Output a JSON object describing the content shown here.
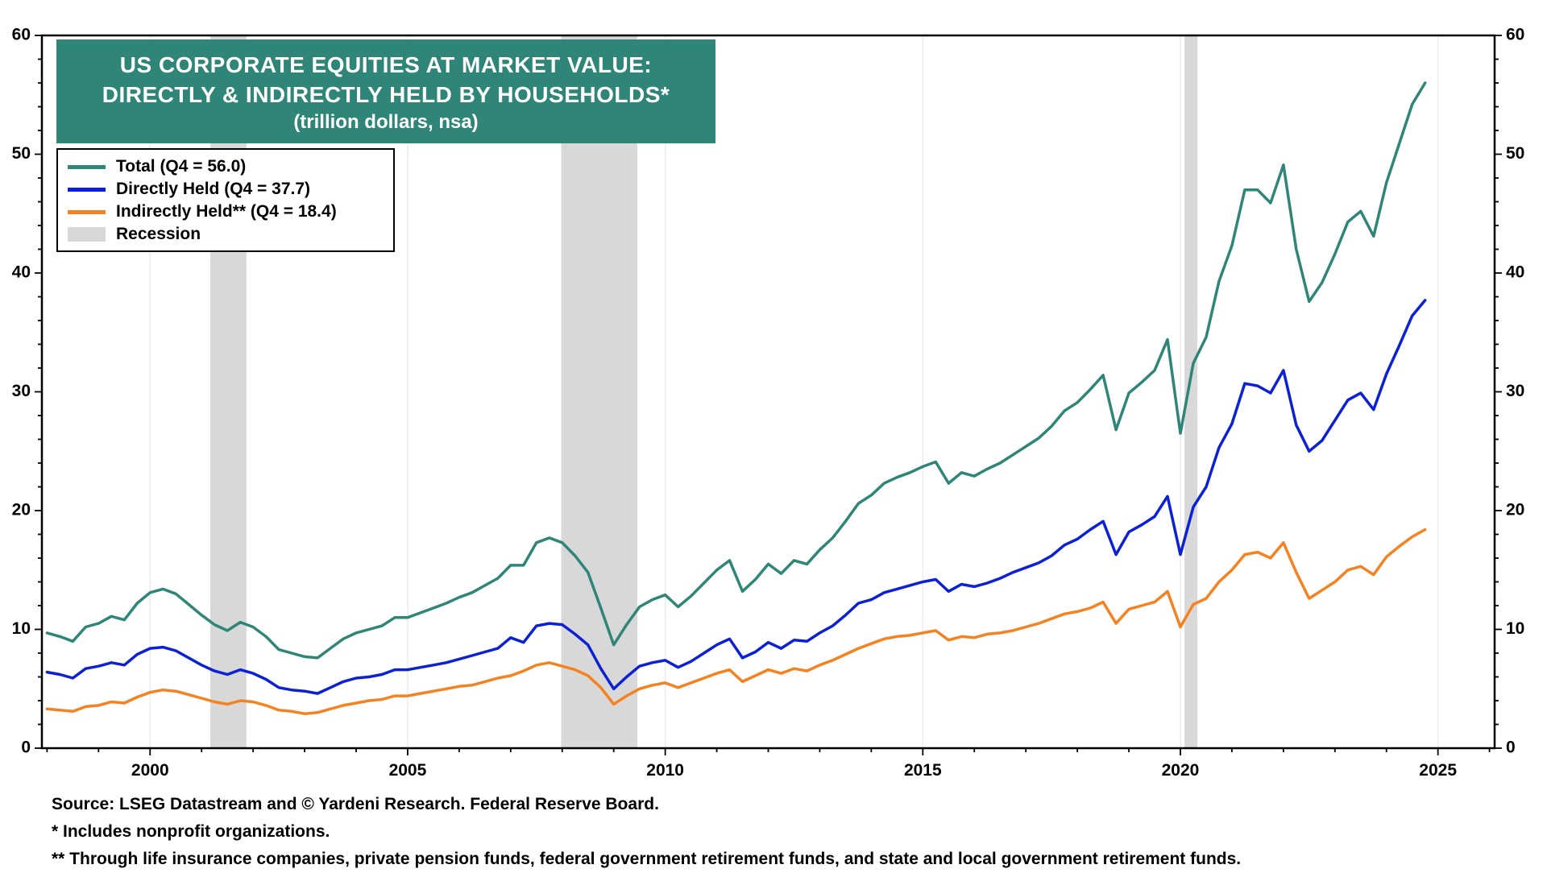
{
  "title": {
    "line1": "US CORPORATE EQUITIES AT MARKET VALUE:",
    "line2": "DIRECTLY & INDIRECTLY HELD BY HOUSEHOLDS*",
    "line3": "(trillion dollars, nsa)",
    "background": "#2f8678",
    "text_color": "#ffffff"
  },
  "legend": {
    "items": [
      {
        "label": "Total (Q4 = 56.0)",
        "type": "line",
        "color": "#2f8678"
      },
      {
        "label": "Directly Held (Q4 = 37.7)",
        "type": "line",
        "color": "#0c20d5"
      },
      {
        "label": "Indirectly Held** (Q4 = 18.4)",
        "type": "line",
        "color": "#f58220"
      },
      {
        "label": "Recession",
        "type": "patch",
        "color": "#d8d8d8"
      }
    ]
  },
  "footer": {
    "lines": [
      "Source: LSEG Datastream and © Yardeni Research. Federal Reserve Board.",
      "* Includes nonprofit organizations.",
      "** Through life insurance companies, private pension funds, federal government retirement funds, and state and local government retirement funds."
    ]
  },
  "chart_data": {
    "type": "line",
    "title": "US CORPORATE EQUITIES AT MARKET VALUE: DIRECTLY & INDIRECTLY HELD BY HOUSEHOLDS*",
    "subtitle": "(trillion dollars, nsa)",
    "xlabel": "",
    "ylabel": "trillion dollars",
    "ylim": [
      0,
      60
    ],
    "legend_position": "top-left",
    "grid": {
      "vertical_at_major_x": true,
      "color": "#ececec"
    },
    "recession_color": "#d8d8d8",
    "recessions": [
      [
        2001.17,
        2001.87
      ],
      [
        2007.98,
        2009.46
      ],
      [
        2020.08,
        2020.33
      ]
    ],
    "x_axis": {
      "min": 1997.9,
      "max": 2026.1,
      "major_ticks": [
        2000,
        2005,
        2010,
        2015,
        2020,
        2025
      ],
      "minor_tick_step": 1
    },
    "y_axis": {
      "min": 0,
      "max": 60,
      "major_ticks": [
        0,
        10,
        20,
        30,
        40,
        50,
        60
      ],
      "minor_tick_step": 2,
      "label_both_sides": true
    },
    "x": [
      1998.0,
      1998.25,
      1998.5,
      1998.75,
      1999.0,
      1999.25,
      1999.5,
      1999.75,
      2000.0,
      2000.25,
      2000.5,
      2000.75,
      2001.0,
      2001.25,
      2001.5,
      2001.75,
      2002.0,
      2002.25,
      2002.5,
      2002.75,
      2003.0,
      2003.25,
      2003.5,
      2003.75,
      2004.0,
      2004.25,
      2004.5,
      2004.75,
      2005.0,
      2005.25,
      2005.5,
      2005.75,
      2006.0,
      2006.25,
      2006.5,
      2006.75,
      2007.0,
      2007.25,
      2007.5,
      2007.75,
      2008.0,
      2008.25,
      2008.5,
      2008.75,
      2009.0,
      2009.25,
      2009.5,
      2009.75,
      2010.0,
      2010.25,
      2010.5,
      2010.75,
      2011.0,
      2011.25,
      2011.5,
      2011.75,
      2012.0,
      2012.25,
      2012.5,
      2012.75,
      2013.0,
      2013.25,
      2013.5,
      2013.75,
      2014.0,
      2014.25,
      2014.5,
      2014.75,
      2015.0,
      2015.25,
      2015.5,
      2015.75,
      2016.0,
      2016.25,
      2016.5,
      2016.75,
      2017.0,
      2017.25,
      2017.5,
      2017.75,
      2018.0,
      2018.25,
      2018.5,
      2018.75,
      2019.0,
      2019.25,
      2019.5,
      2019.75,
      2020.0,
      2020.25,
      2020.5,
      2020.75,
      2021.0,
      2021.25,
      2021.5,
      2021.75,
      2022.0,
      2022.25,
      2022.5,
      2022.75,
      2023.0,
      2023.25,
      2023.5,
      2023.75,
      2024.0,
      2024.25,
      2024.5,
      2024.75
    ],
    "series": [
      {
        "name": "Total",
        "q4_value": 56.0,
        "color": "#2f8678",
        "values": [
          9.7,
          9.4,
          9.0,
          10.2,
          10.5,
          11.1,
          10.8,
          12.2,
          13.1,
          13.4,
          13.0,
          12.1,
          11.2,
          10.4,
          9.9,
          10.6,
          10.2,
          9.4,
          8.3,
          8.0,
          7.7,
          7.6,
          8.4,
          9.2,
          9.7,
          10.0,
          10.3,
          11.0,
          11.0,
          11.4,
          11.8,
          12.2,
          12.7,
          13.1,
          13.7,
          14.3,
          15.4,
          15.4,
          17.3,
          17.7,
          17.3,
          16.2,
          14.8,
          11.8,
          8.7,
          10.4,
          11.9,
          12.5,
          12.9,
          11.9,
          12.8,
          13.9,
          15.0,
          15.8,
          13.2,
          14.2,
          15.5,
          14.7,
          15.8,
          15.5,
          16.7,
          17.7,
          19.1,
          20.6,
          21.3,
          22.3,
          22.8,
          23.2,
          23.7,
          24.1,
          22.3,
          23.2,
          22.9,
          23.5,
          24.0,
          24.7,
          25.4,
          26.1,
          27.1,
          28.4,
          29.1,
          30.2,
          31.4,
          26.8,
          29.9,
          30.8,
          31.8,
          34.4,
          26.5,
          32.4,
          34.6,
          39.3,
          42.3,
          47.0,
          47.0,
          45.9,
          49.1,
          42.0,
          37.6,
          39.2,
          41.6,
          44.3,
          45.2,
          43.1,
          47.6,
          50.9,
          54.2,
          56.0
        ]
      },
      {
        "name": "Directly Held",
        "q4_value": 37.7,
        "color": "#0c20d5",
        "values": [
          6.4,
          6.2,
          5.9,
          6.7,
          6.9,
          7.2,
          7.0,
          7.9,
          8.4,
          8.5,
          8.2,
          7.6,
          7.0,
          6.5,
          6.2,
          6.6,
          6.3,
          5.8,
          5.1,
          4.9,
          4.8,
          4.6,
          5.1,
          5.6,
          5.9,
          6.0,
          6.2,
          6.6,
          6.6,
          6.8,
          7.0,
          7.2,
          7.5,
          7.8,
          8.1,
          8.4,
          9.3,
          8.9,
          10.3,
          10.5,
          10.4,
          9.6,
          8.7,
          6.7,
          5.0,
          6.0,
          6.9,
          7.2,
          7.4,
          6.8,
          7.3,
          8.0,
          8.7,
          9.2,
          7.6,
          8.1,
          8.9,
          8.4,
          9.1,
          9.0,
          9.7,
          10.3,
          11.2,
          12.2,
          12.5,
          13.1,
          13.4,
          13.7,
          14.0,
          14.2,
          13.2,
          13.8,
          13.6,
          13.9,
          14.3,
          14.8,
          15.2,
          15.6,
          16.2,
          17.1,
          17.6,
          18.4,
          19.1,
          16.3,
          18.2,
          18.8,
          19.5,
          21.2,
          16.3,
          20.3,
          22.0,
          25.3,
          27.3,
          30.7,
          30.5,
          29.9,
          31.8,
          27.2,
          25.0,
          25.9,
          27.6,
          29.3,
          29.9,
          28.5,
          31.5,
          33.9,
          36.4,
          37.7
        ]
      },
      {
        "name": "Indirectly Held",
        "q4_value": 18.4,
        "color": "#f58220",
        "values": [
          3.3,
          3.2,
          3.1,
          3.5,
          3.6,
          3.9,
          3.8,
          4.3,
          4.7,
          4.9,
          4.8,
          4.5,
          4.2,
          3.9,
          3.7,
          4.0,
          3.9,
          3.6,
          3.2,
          3.1,
          2.9,
          3.0,
          3.3,
          3.6,
          3.8,
          4.0,
          4.1,
          4.4,
          4.4,
          4.6,
          4.8,
          5.0,
          5.2,
          5.3,
          5.6,
          5.9,
          6.1,
          6.5,
          7.0,
          7.2,
          6.9,
          6.6,
          6.1,
          5.1,
          3.7,
          4.4,
          5.0,
          5.3,
          5.5,
          5.1,
          5.5,
          5.9,
          6.3,
          6.6,
          5.6,
          6.1,
          6.6,
          6.3,
          6.7,
          6.5,
          7.0,
          7.4,
          7.9,
          8.4,
          8.8,
          9.2,
          9.4,
          9.5,
          9.7,
          9.9,
          9.1,
          9.4,
          9.3,
          9.6,
          9.7,
          9.9,
          10.2,
          10.5,
          10.9,
          11.3,
          11.5,
          11.8,
          12.3,
          10.5,
          11.7,
          12.0,
          12.3,
          13.2,
          10.2,
          12.1,
          12.6,
          14.0,
          15.0,
          16.3,
          16.5,
          16.0,
          17.3,
          14.8,
          12.6,
          13.3,
          14.0,
          15.0,
          15.3,
          14.6,
          16.1,
          17.0,
          17.8,
          18.4
        ]
      }
    ]
  }
}
